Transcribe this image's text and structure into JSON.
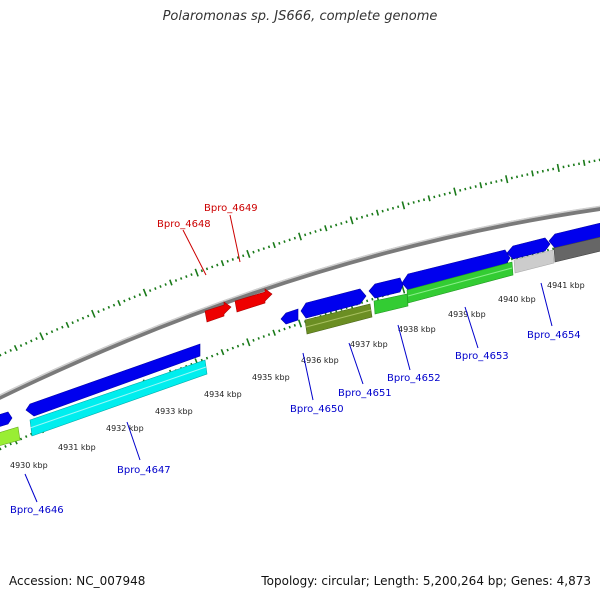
{
  "title": "Polaromonas sp. JS666, complete genome",
  "footer": {
    "accession": "Accession: NC_007948",
    "stats": "Topology: circular; Length: 5,200,264 bp; Genes: 4,873"
  },
  "scale": {
    "tick_labels": [
      "4930 kbp",
      "4931 kbp",
      "4932 kbp",
      "4933 kbp",
      "4934 kbp",
      "4935 kbp",
      "4936 kbp",
      "4937 kbp",
      "4938 kbp",
      "4939 kbp",
      "4940 kbp",
      "4941 kbp"
    ]
  },
  "gene_labels": [
    {
      "name": "Bpro_4646",
      "color": "#0000cc"
    },
    {
      "name": "Bpro_4647",
      "color": "#0000cc"
    },
    {
      "name": "Bpro_4648",
      "color": "#cc0000"
    },
    {
      "name": "Bpro_4649",
      "color": "#cc0000"
    },
    {
      "name": "Bpro_4650",
      "color": "#0000cc"
    },
    {
      "name": "Bpro_4651",
      "color": "#0000cc"
    },
    {
      "name": "Bpro_4652",
      "color": "#0000cc"
    },
    {
      "name": "Bpro_4653",
      "color": "#0000cc"
    },
    {
      "name": "Bpro_4654",
      "color": "#0000cc"
    }
  ],
  "colors": {
    "backbone": "#8a8a8a",
    "tick": "#1a7a1a",
    "blue_cds": "#0000ee",
    "red_cds": "#ee0000",
    "cyan_track": "#00eeee",
    "olive_track": "#6b8e23",
    "green_track": "#33cc33",
    "grey_light": "#c8c8c8",
    "grey_dark": "#666666",
    "yellowgreen_track": "#99ee33"
  }
}
